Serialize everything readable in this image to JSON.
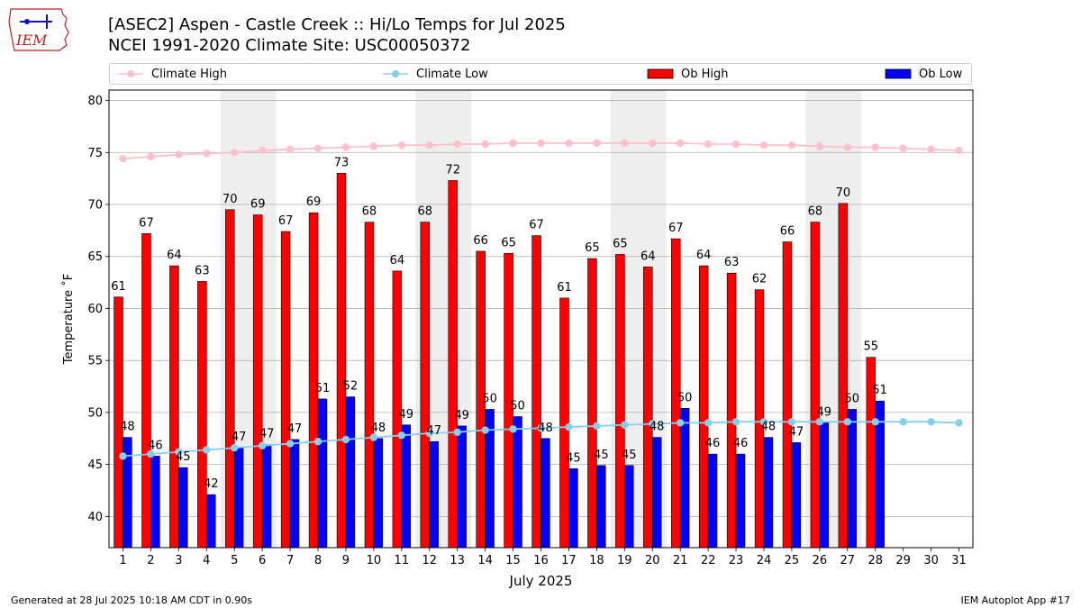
{
  "header": {
    "logo_text": "IEM",
    "title": "[ASEC2] Aspen - Castle Creek :: Hi/Lo Temps for Jul 2025",
    "subtitle": "NCEI 1991-2020 Climate Site: USC00050372"
  },
  "legend": {
    "items": [
      {
        "label": "Climate High",
        "color": "#ffc0cb",
        "marker": "line-dot"
      },
      {
        "label": "Climate Low",
        "color": "#87ceeb",
        "marker": "line-dot"
      },
      {
        "label": "Ob High",
        "color": "#ff0000",
        "marker": "box"
      },
      {
        "label": "Ob Low",
        "color": "#0000ff",
        "marker": "box"
      }
    ]
  },
  "footer": {
    "left": "Generated at 28 Jul 2025 10:18 AM CDT in 0.90s",
    "right": "IEM Autoplot App #17"
  },
  "chart_data": {
    "type": "bar",
    "xlabel": "July 2025",
    "ylabel": "Temperature ˚F",
    "ylim": [
      37,
      81
    ],
    "yticks": [
      40,
      45,
      50,
      55,
      60,
      65,
      70,
      75,
      80
    ],
    "xticks": [
      "1",
      "2",
      "3",
      "4",
      "5",
      "6",
      "7",
      "8",
      "9",
      "10",
      "11",
      "12",
      "13",
      "14",
      "15",
      "16",
      "17",
      "18",
      "19",
      "20",
      "21",
      "22",
      "23",
      "24",
      "25",
      "26",
      "27",
      "28",
      "29",
      "30",
      "31"
    ],
    "grid": "horizontal",
    "weekend_shading_days": [
      5,
      6,
      12,
      13,
      19,
      20,
      26,
      27
    ],
    "shade_color": "#eeeeee",
    "days": [
      1,
      2,
      3,
      4,
      5,
      6,
      7,
      8,
      9,
      10,
      11,
      12,
      13,
      14,
      15,
      16,
      17,
      18,
      19,
      20,
      21,
      22,
      23,
      24,
      25,
      26,
      27,
      28,
      29,
      30,
      31
    ],
    "series": [
      {
        "name": "Ob High",
        "color": "#ff0000",
        "values": [
          61.1,
          67.2,
          64.1,
          62.6,
          69.5,
          69.0,
          67.4,
          69.2,
          73.0,
          68.3,
          63.6,
          68.3,
          72.3,
          65.5,
          65.3,
          67.0,
          61.0,
          64.8,
          65.2,
          64.0,
          66.7,
          64.1,
          63.4,
          61.8,
          66.4,
          68.3,
          70.1,
          55.3
        ],
        "labels": [
          "61",
          "67",
          "64",
          "63",
          "70",
          "69",
          "67",
          "69",
          "73",
          "68",
          "64",
          "68",
          "72",
          "66",
          "65",
          "67",
          "61",
          "65",
          "65",
          "64",
          "67",
          "64",
          "63",
          "62",
          "66",
          "68",
          "70",
          "55"
        ]
      },
      {
        "name": "Ob Low",
        "color": "#0000ff",
        "values": [
          47.6,
          45.8,
          44.7,
          42.1,
          46.6,
          46.9,
          47.4,
          51.3,
          51.5,
          47.5,
          48.8,
          47.2,
          48.7,
          50.3,
          49.6,
          47.5,
          44.6,
          44.9,
          44.9,
          47.6,
          50.4,
          46.0,
          46.0,
          47.6,
          47.1,
          49.0,
          50.3,
          51.1
        ],
        "labels": [
          "48",
          "46",
          "45",
          "42",
          "47",
          "47",
          "47",
          "51",
          "52",
          "48",
          "49",
          "47",
          "49",
          "50",
          "50",
          "48",
          "45",
          "45",
          "45",
          "48",
          "50",
          "46",
          "46",
          "48",
          "47",
          "49",
          "50",
          "51"
        ]
      },
      {
        "name": "Climate High",
        "color": "#ffc0cb",
        "values": [
          74.4,
          74.6,
          74.8,
          74.9,
          75.0,
          75.2,
          75.3,
          75.4,
          75.5,
          75.6,
          75.7,
          75.7,
          75.8,
          75.8,
          75.9,
          75.9,
          75.9,
          75.9,
          75.9,
          75.9,
          75.9,
          75.8,
          75.8,
          75.7,
          75.7,
          75.6,
          75.5,
          75.5,
          75.4,
          75.3,
          75.2
        ]
      },
      {
        "name": "Climate Low",
        "color": "#87ceeb",
        "values": [
          45.8,
          46.0,
          46.2,
          46.4,
          46.6,
          46.8,
          47.0,
          47.2,
          47.4,
          47.6,
          47.8,
          48.0,
          48.1,
          48.3,
          48.4,
          48.5,
          48.6,
          48.7,
          48.8,
          48.9,
          49.0,
          49.0,
          49.1,
          49.1,
          49.1,
          49.1,
          49.1,
          49.1,
          49.1,
          49.1,
          49.0
        ]
      }
    ]
  }
}
